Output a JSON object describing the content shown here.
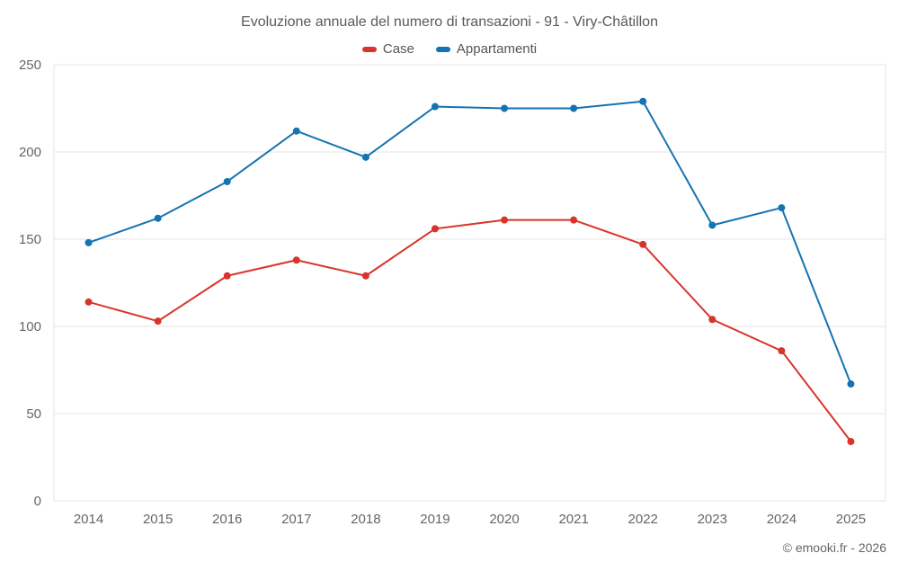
{
  "footer": "© emooki.fr - 2026",
  "chart_data": {
    "type": "line",
    "title": "Evoluzione annuale del numero di transazioni - 91 - Viry-Châtillon",
    "categories": [
      "2014",
      "2015",
      "2016",
      "2017",
      "2018",
      "2019",
      "2020",
      "2021",
      "2022",
      "2023",
      "2024",
      "2025"
    ],
    "series": [
      {
        "name": "Case",
        "color": "#d9342b",
        "values": [
          114,
          103,
          129,
          138,
          129,
          156,
          161,
          161,
          147,
          104,
          86,
          34
        ]
      },
      {
        "name": "Appartamenti",
        "color": "#1673b1",
        "values": [
          148,
          162,
          183,
          212,
          197,
          226,
          225,
          225,
          229,
          158,
          168,
          67
        ]
      }
    ],
    "xlabel": "",
    "ylabel": "",
    "ylim": [
      0,
      250
    ],
    "yticks": [
      0,
      50,
      100,
      150,
      200,
      250
    ],
    "grid": "horizontal",
    "legend_position": "top",
    "grid_color": "#e6e6e6",
    "tick_label_color": "#666666"
  }
}
